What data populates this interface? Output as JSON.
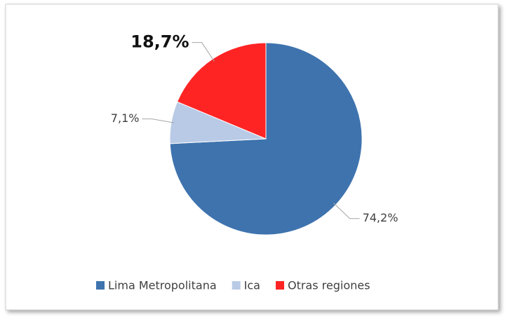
{
  "chart_data": {
    "type": "pie",
    "categories": [
      "Lima Metropolitana",
      "Ica",
      "Otras regiones"
    ],
    "values": [
      74.2,
      7.1,
      18.7
    ],
    "value_labels": [
      "74,2%",
      "7,1%",
      "18,7%"
    ],
    "colors": [
      "#3e73ae",
      "#b9cae6",
      "#ff2424"
    ],
    "legend": "bottom"
  }
}
